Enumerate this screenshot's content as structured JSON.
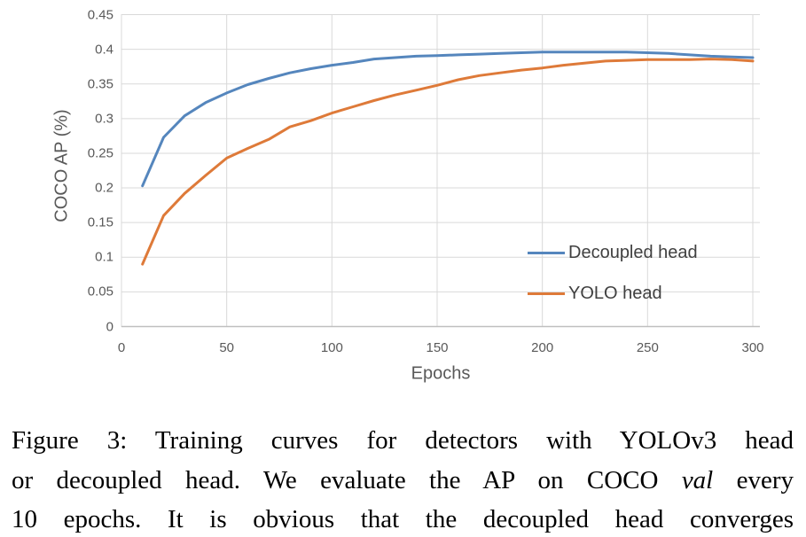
{
  "chart_data": {
    "type": "line",
    "title": "",
    "xlabel": "Epochs",
    "ylabel": "COCO AP (%)",
    "xlim": [
      0,
      300
    ],
    "ylim": [
      0,
      0.45
    ],
    "x_ticks": [
      "0",
      "50",
      "100",
      "150",
      "200",
      "250",
      "300"
    ],
    "y_ticks": [
      "0",
      "0.05",
      "0.1",
      "0.15",
      "0.2",
      "0.25",
      "0.3",
      "0.35",
      "0.4",
      "0.45"
    ],
    "grid": true,
    "legend_position": "inside-right-no-border",
    "x": [
      10,
      20,
      30,
      40,
      50,
      60,
      70,
      80,
      90,
      100,
      110,
      120,
      130,
      140,
      150,
      160,
      170,
      180,
      190,
      200,
      210,
      220,
      230,
      240,
      250,
      260,
      270,
      280,
      290,
      300
    ],
    "series": [
      {
        "name": "Decoupled head",
        "color": "#5586bd",
        "values": [
          0.203,
          0.273,
          0.304,
          0.323,
          0.337,
          0.349,
          0.358,
          0.366,
          0.372,
          0.377,
          0.381,
          0.386,
          0.388,
          0.39,
          0.391,
          0.392,
          0.393,
          0.394,
          0.395,
          0.396,
          0.396,
          0.396,
          0.396,
          0.396,
          0.395,
          0.394,
          0.392,
          0.39,
          0.389,
          0.388
        ]
      },
      {
        "name": "YOLO head",
        "color": "#de7a39",
        "values": [
          0.09,
          0.16,
          0.192,
          0.218,
          0.243,
          0.257,
          0.27,
          0.288,
          0.297,
          0.308,
          0.317,
          0.326,
          0.334,
          0.341,
          0.348,
          0.356,
          0.362,
          0.366,
          0.37,
          0.373,
          0.377,
          0.38,
          0.383,
          0.384,
          0.385,
          0.385,
          0.385,
          0.386,
          0.385,
          0.383
        ]
      }
    ]
  },
  "figure": {
    "caption": {
      "line1": "Figure 3: Training curves for detectors with YOLOv3 head",
      "line2_pre": "or decoupled head. We evaluate the AP on COCO ",
      "line2_italic": "val",
      "line2_post": " every",
      "line3": "10 epochs. It is obvious that the decoupled head converges"
    }
  },
  "colors": {
    "background": "#ffffff",
    "gridline": "#d9d9d9",
    "axis_line": "#bfbfbf",
    "tick_label": "#595959",
    "axis_title": "#595959",
    "legend_text": "#404040",
    "caption_text": "#000000"
  }
}
